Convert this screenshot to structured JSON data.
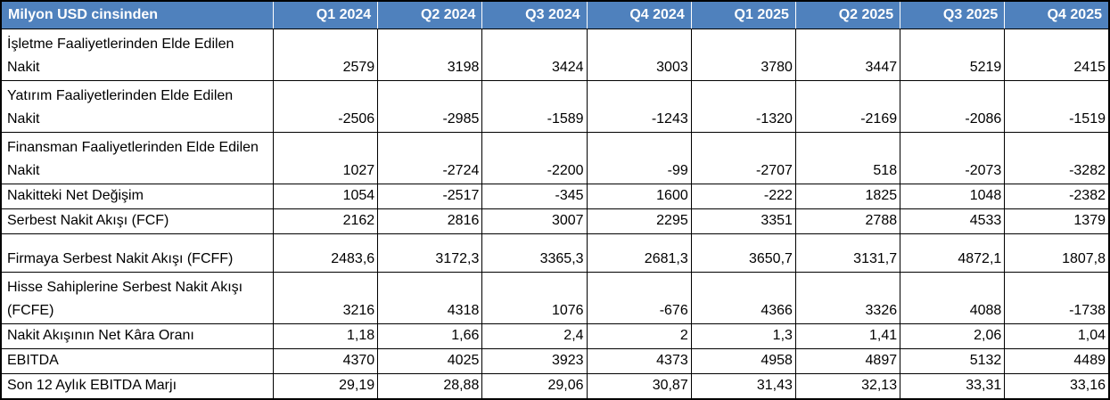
{
  "table": {
    "header": {
      "label": "Milyon USD cinsinden",
      "columns": [
        "Q1 2024",
        "Q2 2024",
        "Q3 2024",
        "Q4 2024",
        "Q1 2025",
        "Q2 2025",
        "Q3 2025",
        "Q4 2025"
      ]
    },
    "rows": [
      {
        "label": "İşletme Faaliyetlerinden Elde Edilen Nakit",
        "values": [
          "2579",
          "3198",
          "3424",
          "3003",
          "3780",
          "3447",
          "5219",
          "2415"
        ]
      },
      {
        "label": "Yatırım Faaliyetlerinden Elde Edilen Nakit",
        "values": [
          "-2506",
          "-2985",
          "-1589",
          "-1243",
          "-1320",
          "-2169",
          "-2086",
          "-1519"
        ]
      },
      {
        "label": "Finansman Faaliyetlerinden Elde Edilen Nakit",
        "values": [
          "1027",
          "-2724",
          "-2200",
          "-99",
          "-2707",
          "518",
          "-2073",
          "-3282"
        ]
      },
      {
        "label": "Nakitteki Net Değişim",
        "values": [
          "1054",
          "-2517",
          "-345",
          "1600",
          "-222",
          "1825",
          "1048",
          "-2382"
        ]
      },
      {
        "label": "Serbest Nakit Akışı (FCF)",
        "values": [
          "2162",
          "2816",
          "3007",
          "2295",
          "3351",
          "2788",
          "4533",
          "1379"
        ]
      },
      {
        "label": "Firmaya Serbest Nakit Akışı (FCFF)",
        "values": [
          "2483,6",
          "3172,3",
          "3365,3",
          "2681,3",
          "3650,7",
          "3131,7",
          "4872,1",
          "1807,8"
        ]
      },
      {
        "label": "Hisse Sahiplerine Serbest Nakit Akışı (FCFE)",
        "values": [
          "3216",
          "4318",
          "1076",
          "-676",
          "4366",
          "3326",
          "4088",
          "-1738"
        ]
      },
      {
        "label": "Nakit Akışının Net Kâra Oranı",
        "values": [
          "1,18",
          "1,66",
          "2,4",
          "2",
          "1,3",
          "1,41",
          "2,06",
          "1,04"
        ]
      },
      {
        "label": "EBITDA",
        "values": [
          "4370",
          "4025",
          "3923",
          "4373",
          "4958",
          "4897",
          "5132",
          "4489"
        ]
      },
      {
        "label": "Son 12 Aylık EBITDA Marjı",
        "values": [
          "29,19",
          "28,88",
          "29,06",
          "30,87",
          "31,43",
          "32,13",
          "33,31",
          "33,16"
        ]
      }
    ]
  },
  "colors": {
    "header_bg": "#4F81BD",
    "header_text": "#FFFFFF",
    "grid_line": "#000000",
    "body_bg": "#FFFFFF",
    "body_text": "#000000"
  },
  "chart_data": {
    "type": "table",
    "title": "Milyon USD cinsinden",
    "categories": [
      "Q1 2024",
      "Q2 2024",
      "Q3 2024",
      "Q4 2024",
      "Q1 2025",
      "Q2 2025",
      "Q3 2025",
      "Q4 2025"
    ],
    "series": [
      {
        "name": "İşletme Faaliyetlerinden Elde Edilen Nakit",
        "values": [
          2579,
          3198,
          3424,
          3003,
          3780,
          3447,
          5219,
          2415
        ]
      },
      {
        "name": "Yatırım Faaliyetlerinden Elde Edilen Nakit",
        "values": [
          -2506,
          -2985,
          -1589,
          -1243,
          -1320,
          -2169,
          -2086,
          -1519
        ]
      },
      {
        "name": "Finansman Faaliyetlerinden Elde Edilen Nakit",
        "values": [
          1027,
          -2724,
          -2200,
          -99,
          -2707,
          518,
          -2073,
          -3282
        ]
      },
      {
        "name": "Nakitteki Net Değişim",
        "values": [
          1054,
          -2517,
          -345,
          1600,
          -222,
          1825,
          1048,
          -2382
        ]
      },
      {
        "name": "Serbest Nakit Akışı (FCF)",
        "values": [
          2162,
          2816,
          3007,
          2295,
          3351,
          2788,
          4533,
          1379
        ]
      },
      {
        "name": "Firmaya Serbest Nakit Akışı (FCFF)",
        "values": [
          2483.6,
          3172.3,
          3365.3,
          2681.3,
          3650.7,
          3131.7,
          4872.1,
          1807.8
        ]
      },
      {
        "name": "Hisse Sahiplerine Serbest Nakit Akışı (FCFE)",
        "values": [
          3216,
          4318,
          1076,
          -676,
          4366,
          3326,
          4088,
          -1738
        ]
      },
      {
        "name": "Nakit Akışının Net Kâra Oranı",
        "values": [
          1.18,
          1.66,
          2.4,
          2,
          1.3,
          1.41,
          2.06,
          1.04
        ]
      },
      {
        "name": "EBITDA",
        "values": [
          4370,
          4025,
          3923,
          4373,
          4958,
          4897,
          5132,
          4489
        ]
      },
      {
        "name": "Son 12 Aylık EBITDA Marjı",
        "values": [
          29.19,
          28.88,
          29.06,
          30.87,
          31.43,
          32.13,
          33.31,
          33.16
        ]
      }
    ],
    "layout_hints": {
      "decimal_separator": ",",
      "value_alignment": "right",
      "header_style": "blue-banner"
    }
  }
}
